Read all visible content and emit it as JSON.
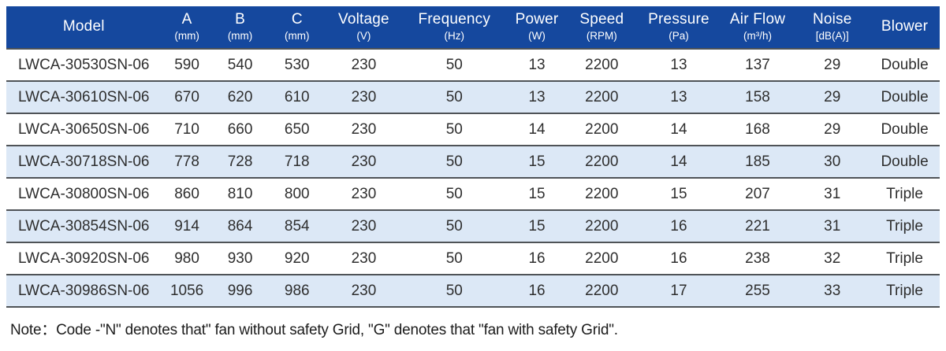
{
  "colors": {
    "header_bg": "#15489E",
    "stripe_bg": "#DCE8F6",
    "line": "#4F5357",
    "header_text": "#FFFFFF",
    "body_text": "#2E2E2E"
  },
  "table": {
    "columns": [
      {
        "label": "Model",
        "unit": ""
      },
      {
        "label": "A",
        "unit": "(mm)"
      },
      {
        "label": "B",
        "unit": "(mm)"
      },
      {
        "label": "C",
        "unit": "(mm)"
      },
      {
        "label": "Voltage",
        "unit": "(V)"
      },
      {
        "label": "Frequency",
        "unit": "(Hz)"
      },
      {
        "label": "Power",
        "unit": "(W)"
      },
      {
        "label": "Speed",
        "unit": "(RPM)"
      },
      {
        "label": "Pressure",
        "unit": "(Pa)"
      },
      {
        "label": "Air Flow",
        "unit": "(m³/h)"
      },
      {
        "label": "Noise",
        "unit": "[dB(A)]"
      },
      {
        "label": "Blower",
        "unit": ""
      }
    ],
    "rows": [
      [
        "LWCA-30530SN-06",
        "590",
        "540",
        "530",
        "230",
        "50",
        "13",
        "2200",
        "13",
        "137",
        "29",
        "Double"
      ],
      [
        "LWCA-30610SN-06",
        "670",
        "620",
        "610",
        "230",
        "50",
        "13",
        "2200",
        "13",
        "158",
        "29",
        "Double"
      ],
      [
        "LWCA-30650SN-06",
        "710",
        "660",
        "650",
        "230",
        "50",
        "14",
        "2200",
        "14",
        "168",
        "29",
        "Double"
      ],
      [
        "LWCA-30718SN-06",
        "778",
        "728",
        "718",
        "230",
        "50",
        "15",
        "2200",
        "14",
        "185",
        "30",
        "Double"
      ],
      [
        "LWCA-30800SN-06",
        "860",
        "810",
        "800",
        "230",
        "50",
        "15",
        "2200",
        "15",
        "207",
        "31",
        "Triple"
      ],
      [
        "LWCA-30854SN-06",
        "914",
        "864",
        "854",
        "230",
        "50",
        "15",
        "2200",
        "16",
        "221",
        "31",
        "Triple"
      ],
      [
        "LWCA-30920SN-06",
        "980",
        "930",
        "920",
        "230",
        "50",
        "16",
        "2200",
        "16",
        "238",
        "32",
        "Triple"
      ],
      [
        "LWCA-30986SN-06",
        "1056",
        "996",
        "986",
        "230",
        "50",
        "16",
        "2200",
        "17",
        "255",
        "33",
        "Triple"
      ]
    ]
  },
  "note": "Note：Code -\"N\" denotes that\" fan without safety Grid, \"G\" denotes that \"fan with safety Grid\"."
}
